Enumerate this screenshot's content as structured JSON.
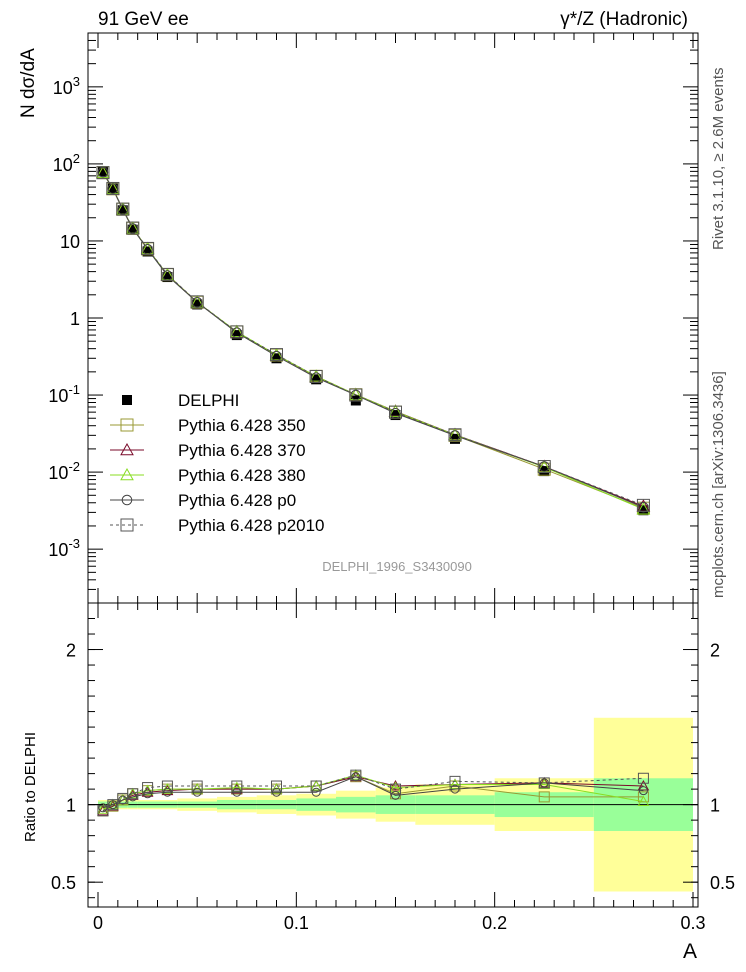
{
  "header": {
    "left_label": "91 GeV ee",
    "right_label": "γ*/Z (Hadronic)"
  },
  "side_labels": {
    "rivet": "Rivet 3.1.10, ≥ 2.6M events",
    "mcplots": "mcplots.cern.ch [arXiv:1306.3436]"
  },
  "watermark": "DELPHI_1996_S3430090",
  "chart_data": [
    {
      "type": "line",
      "ylabel": "N dσ/dA",
      "xlabel": "A",
      "xlim": [
        0.0,
        0.3
      ],
      "ylim": [
        0.0002,
        5000
      ],
      "yscale": "log",
      "ytick_labels": [
        "10^-3",
        "10^-2",
        "10^-1",
        "1",
        "10",
        "10^2",
        "10^3"
      ],
      "legend_position": "bottom-left",
      "x": [
        0.0025,
        0.0075,
        0.0125,
        0.0175,
        0.025,
        0.035,
        0.05,
        0.07,
        0.09,
        0.11,
        0.13,
        0.15,
        0.18,
        0.225,
        0.275
      ],
      "series": [
        {
          "name": "DELPHI",
          "color": "#000000",
          "marker": "filled-square",
          "values": [
            80,
            48,
            25,
            14,
            7.3,
            3.4,
            1.5,
            0.6,
            0.3,
            0.16,
            0.085,
            0.055,
            0.027,
            0.0103,
            0.0032
          ]
        },
        {
          "name": "Pythia 6.428 350",
          "color": "#999933",
          "marker": "open-square",
          "values": [
            77,
            47.5,
            25.8,
            14.6,
            7.9,
            3.65,
            1.6,
            0.66,
            0.33,
            0.175,
            0.101,
            0.06,
            0.03,
            0.0109,
            0.0034
          ]
        },
        {
          "name": "Pythia 6.428 370",
          "color": "#7a0a2a",
          "marker": "open-triangle",
          "values": [
            76.5,
            47.2,
            25.6,
            14.5,
            7.9,
            3.6,
            1.6,
            0.66,
            0.33,
            0.174,
            0.101,
            0.0615,
            0.0306,
            0.0118,
            0.0036
          ]
        },
        {
          "name": "Pythia 6.428 380",
          "color": "#88dd22",
          "marker": "open-triangle",
          "values": [
            77,
            47.5,
            25.7,
            14.6,
            7.9,
            3.62,
            1.6,
            0.665,
            0.33,
            0.175,
            0.101,
            0.061,
            0.0304,
            0.0116,
            0.0033
          ]
        },
        {
          "name": "Pythia 6.428 p0",
          "color": "#444444",
          "marker": "open-circle",
          "values": [
            78,
            47.8,
            25.5,
            14.5,
            7.8,
            3.55,
            1.6,
            0.645,
            0.32,
            0.168,
            0.1,
            0.058,
            0.0298,
            0.0118,
            0.0035
          ]
        },
        {
          "name": "Pythia 6.428 p2010",
          "color": "#555555",
          "marker": "open-square-dashed",
          "values": [
            77,
            48,
            25.9,
            14.7,
            8.0,
            3.68,
            1.62,
            0.66,
            0.335,
            0.174,
            0.1,
            0.06,
            0.0305,
            0.0118,
            0.0037
          ]
        }
      ]
    },
    {
      "type": "line",
      "ylabel": "Ratio to DELPHI",
      "xlabel": "A",
      "xlim": [
        0.0,
        0.3
      ],
      "ylim": [
        0.34,
        2.3
      ],
      "ytick_labels": [
        "0.5",
        "1",
        "2"
      ],
      "xtick_labels": [
        "0",
        "0.1",
        "0.2",
        "0.3"
      ],
      "x": [
        0.0025,
        0.0075,
        0.0125,
        0.0175,
        0.025,
        0.035,
        0.05,
        0.07,
        0.09,
        0.11,
        0.13,
        0.15,
        0.18,
        0.225,
        0.275
      ],
      "band_edges": [
        0.0,
        0.005,
        0.01,
        0.015,
        0.02,
        0.03,
        0.04,
        0.06,
        0.08,
        0.1,
        0.12,
        0.14,
        0.16,
        0.2,
        0.25,
        0.3
      ],
      "stat_band": [
        0.02,
        0.02,
        0.02,
        0.02,
        0.02,
        0.02,
        0.02,
        0.03,
        0.03,
        0.04,
        0.05,
        0.06,
        0.06,
        0.08,
        0.17
      ],
      "total_band": [
        0.03,
        0.03,
        0.03,
        0.03,
        0.03,
        0.03,
        0.04,
        0.05,
        0.06,
        0.07,
        0.09,
        0.11,
        0.13,
        0.17,
        0.56
      ],
      "series": [
        {
          "name": "Pythia 6.428 350",
          "color": "#999933",
          "values": [
            0.96,
            0.99,
            1.03,
            1.07,
            1.09,
            1.1,
            1.1,
            1.1,
            1.1,
            1.12,
            1.18,
            1.07,
            1.12,
            1.05,
            1.05
          ]
        },
        {
          "name": "Pythia 6.428 370",
          "color": "#7a0a2a",
          "values": [
            0.96,
            0.99,
            1.03,
            1.06,
            1.08,
            1.09,
            1.1,
            1.1,
            1.1,
            1.12,
            1.18,
            1.12,
            1.13,
            1.14,
            1.12
          ]
        },
        {
          "name": "Pythia 6.428 380",
          "color": "#88dd22",
          "values": [
            0.97,
            1.0,
            1.03,
            1.07,
            1.09,
            1.1,
            1.1,
            1.11,
            1.1,
            1.12,
            1.19,
            1.11,
            1.13,
            1.13,
            1.02
          ]
        },
        {
          "name": "Pythia 6.428 p0",
          "color": "#444444",
          "values": [
            0.98,
            1.0,
            1.03,
            1.05,
            1.07,
            1.08,
            1.08,
            1.08,
            1.08,
            1.08,
            1.18,
            1.06,
            1.1,
            1.14,
            1.09
          ]
        },
        {
          "name": "Pythia 6.428 p2010",
          "color": "#555555",
          "values": [
            0.96,
            1.0,
            1.04,
            1.07,
            1.11,
            1.12,
            1.12,
            1.12,
            1.12,
            1.12,
            1.19,
            1.1,
            1.15,
            1.14,
            1.17
          ]
        }
      ]
    }
  ]
}
